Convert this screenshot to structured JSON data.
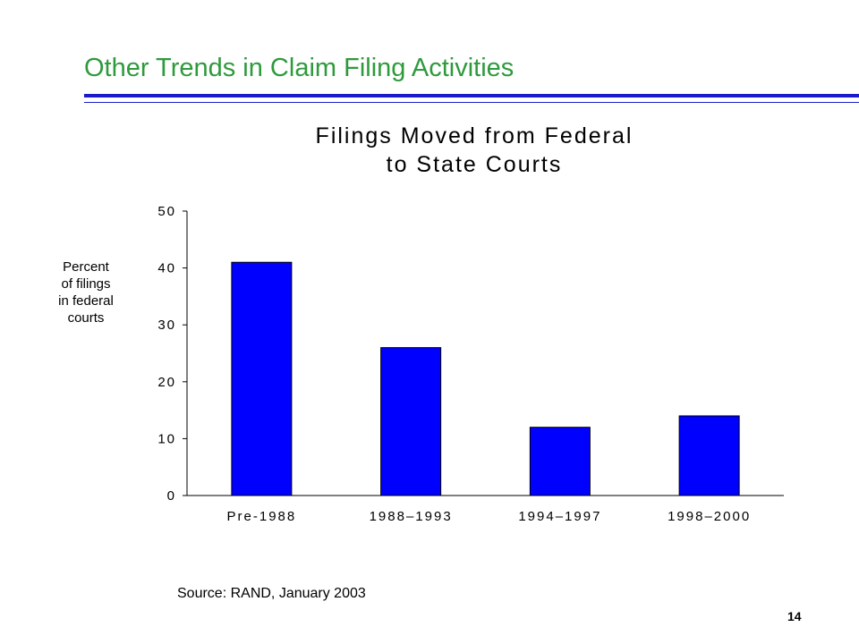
{
  "slide": {
    "title": "Other Trends in Claim Filing Activities",
    "source": "Source: RAND, January 2003",
    "page_number": "14",
    "title_color": "#2e9a3c",
    "rule_color": "#1a1acc"
  },
  "chart_data": {
    "type": "bar",
    "title_lines": [
      "Filings Moved from Federal",
      "to State Courts"
    ],
    "ylabel_lines": [
      "Percent",
      "of filings",
      "in federal",
      "courts"
    ],
    "categories": [
      "Pre-1988",
      "1988–1993",
      "1994–1997",
      "1998–2000"
    ],
    "values": [
      41,
      26,
      12,
      14
    ],
    "ylim": [
      0,
      50
    ],
    "yticks": [
      0,
      10,
      20,
      30,
      40,
      50
    ],
    "ytick_labels": [
      "0",
      "10",
      "20",
      "30",
      "40",
      "50"
    ],
    "grid": false,
    "legend": "none",
    "bar_color": "#0000ff"
  }
}
